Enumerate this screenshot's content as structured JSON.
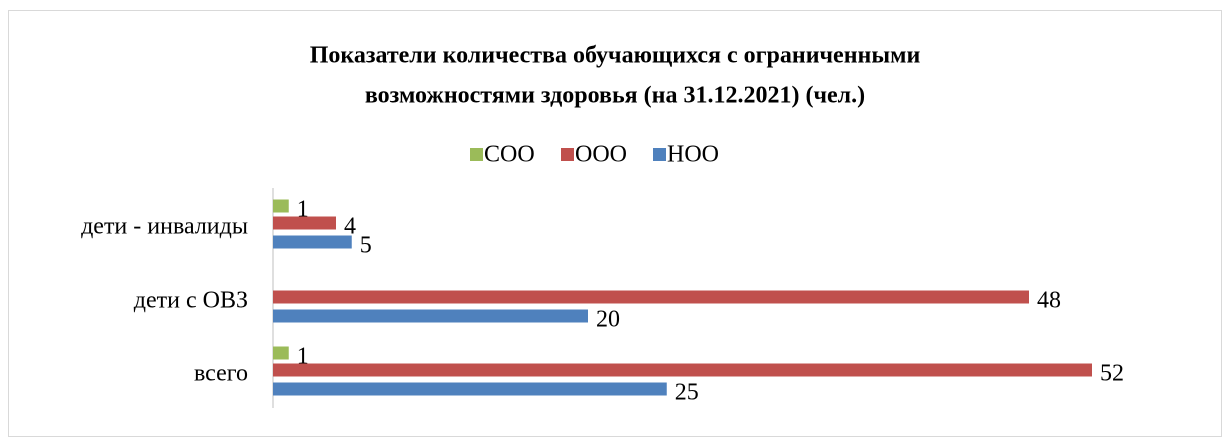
{
  "chart_data": {
    "type": "hbar",
    "title": [
      "Показатели количества обучающихся с ограниченными",
      "возможностями здоровья (на 31.12.2021) (чел.)"
    ],
    "categories": [
      "дети - инвалиды",
      "дети с ОВЗ",
      "всего"
    ],
    "series": [
      {
        "name": "СОО",
        "color": "#9bbb59",
        "values": [
          1,
          null,
          1
        ]
      },
      {
        "name": "ООО",
        "color": "#c0504d",
        "values": [
          4,
          48,
          52
        ]
      },
      {
        "name": "НОО",
        "color": "#4f81bd",
        "values": [
          5,
          20,
          25
        ]
      }
    ],
    "xlim": [
      0,
      52
    ]
  }
}
